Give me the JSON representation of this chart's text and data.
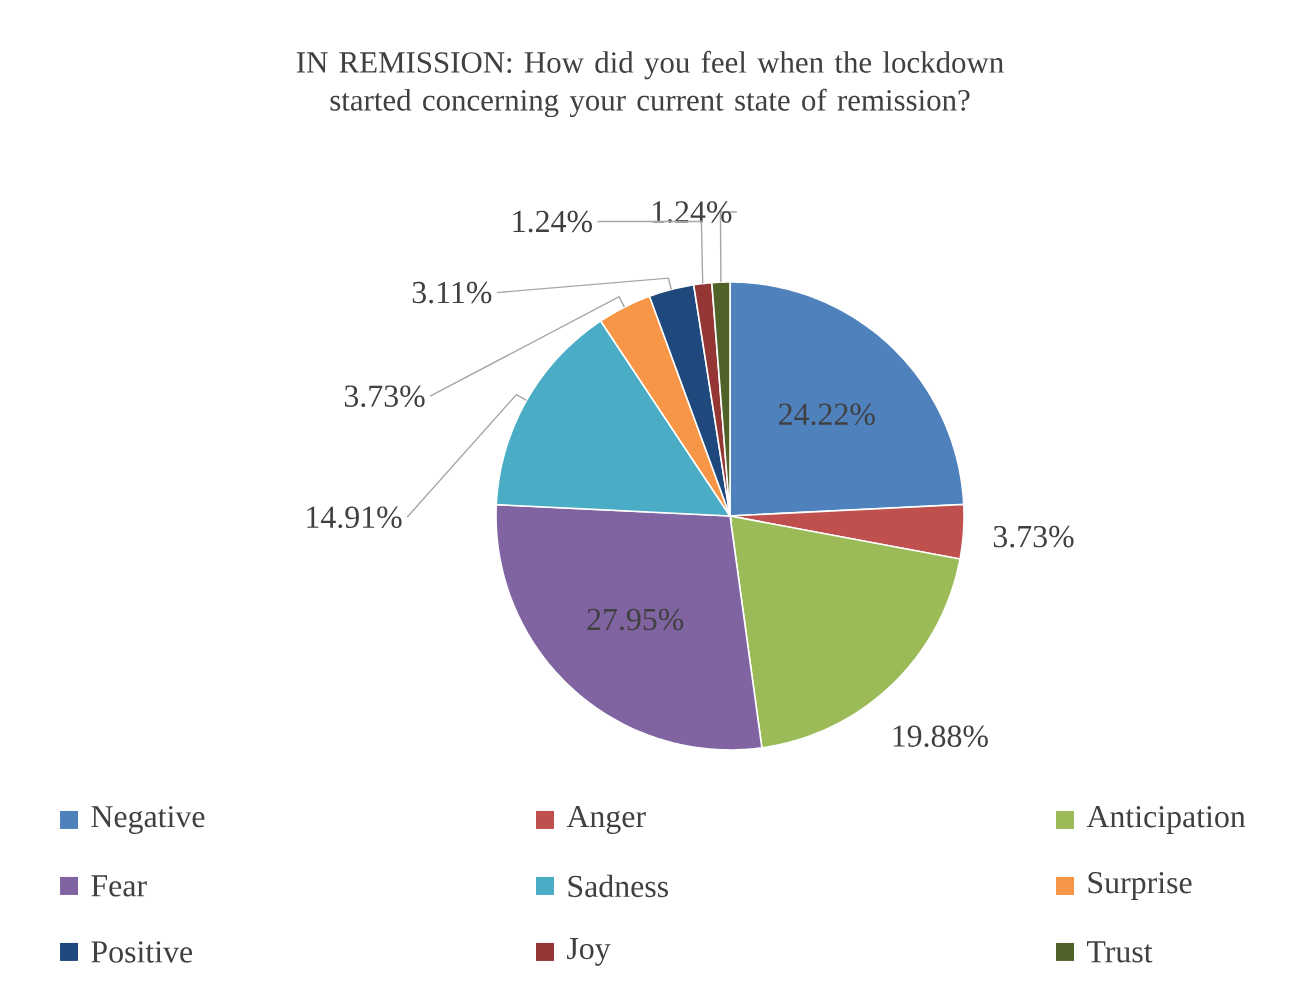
{
  "chart_data": {
    "type": "pie",
    "title": "IN REMISSION: How did you feel when the lockdown started concerning your current state of remission?",
    "categories": [
      "Negative",
      "Anger",
      "Anticipation",
      "Fear",
      "Sadness",
      "Surprise",
      "Positive",
      "Joy",
      "Trust"
    ],
    "values": [
      24.22,
      3.73,
      19.88,
      27.95,
      14.91,
      3.73,
      3.11,
      1.24,
      1.24
    ],
    "value_labels": [
      "24.22%",
      "3.73%",
      "19.88%",
      "27.95%",
      "14.91%",
      "3.73%",
      "3.11%",
      "1.24%",
      "1.24%"
    ],
    "colors": [
      "#4f81bd",
      "#c0504d",
      "#9bbb59",
      "#8064a2",
      "#4bacc6",
      "#f79646",
      "#1f497d",
      "#943634",
      "#4f6228"
    ],
    "legend": "bottom"
  }
}
